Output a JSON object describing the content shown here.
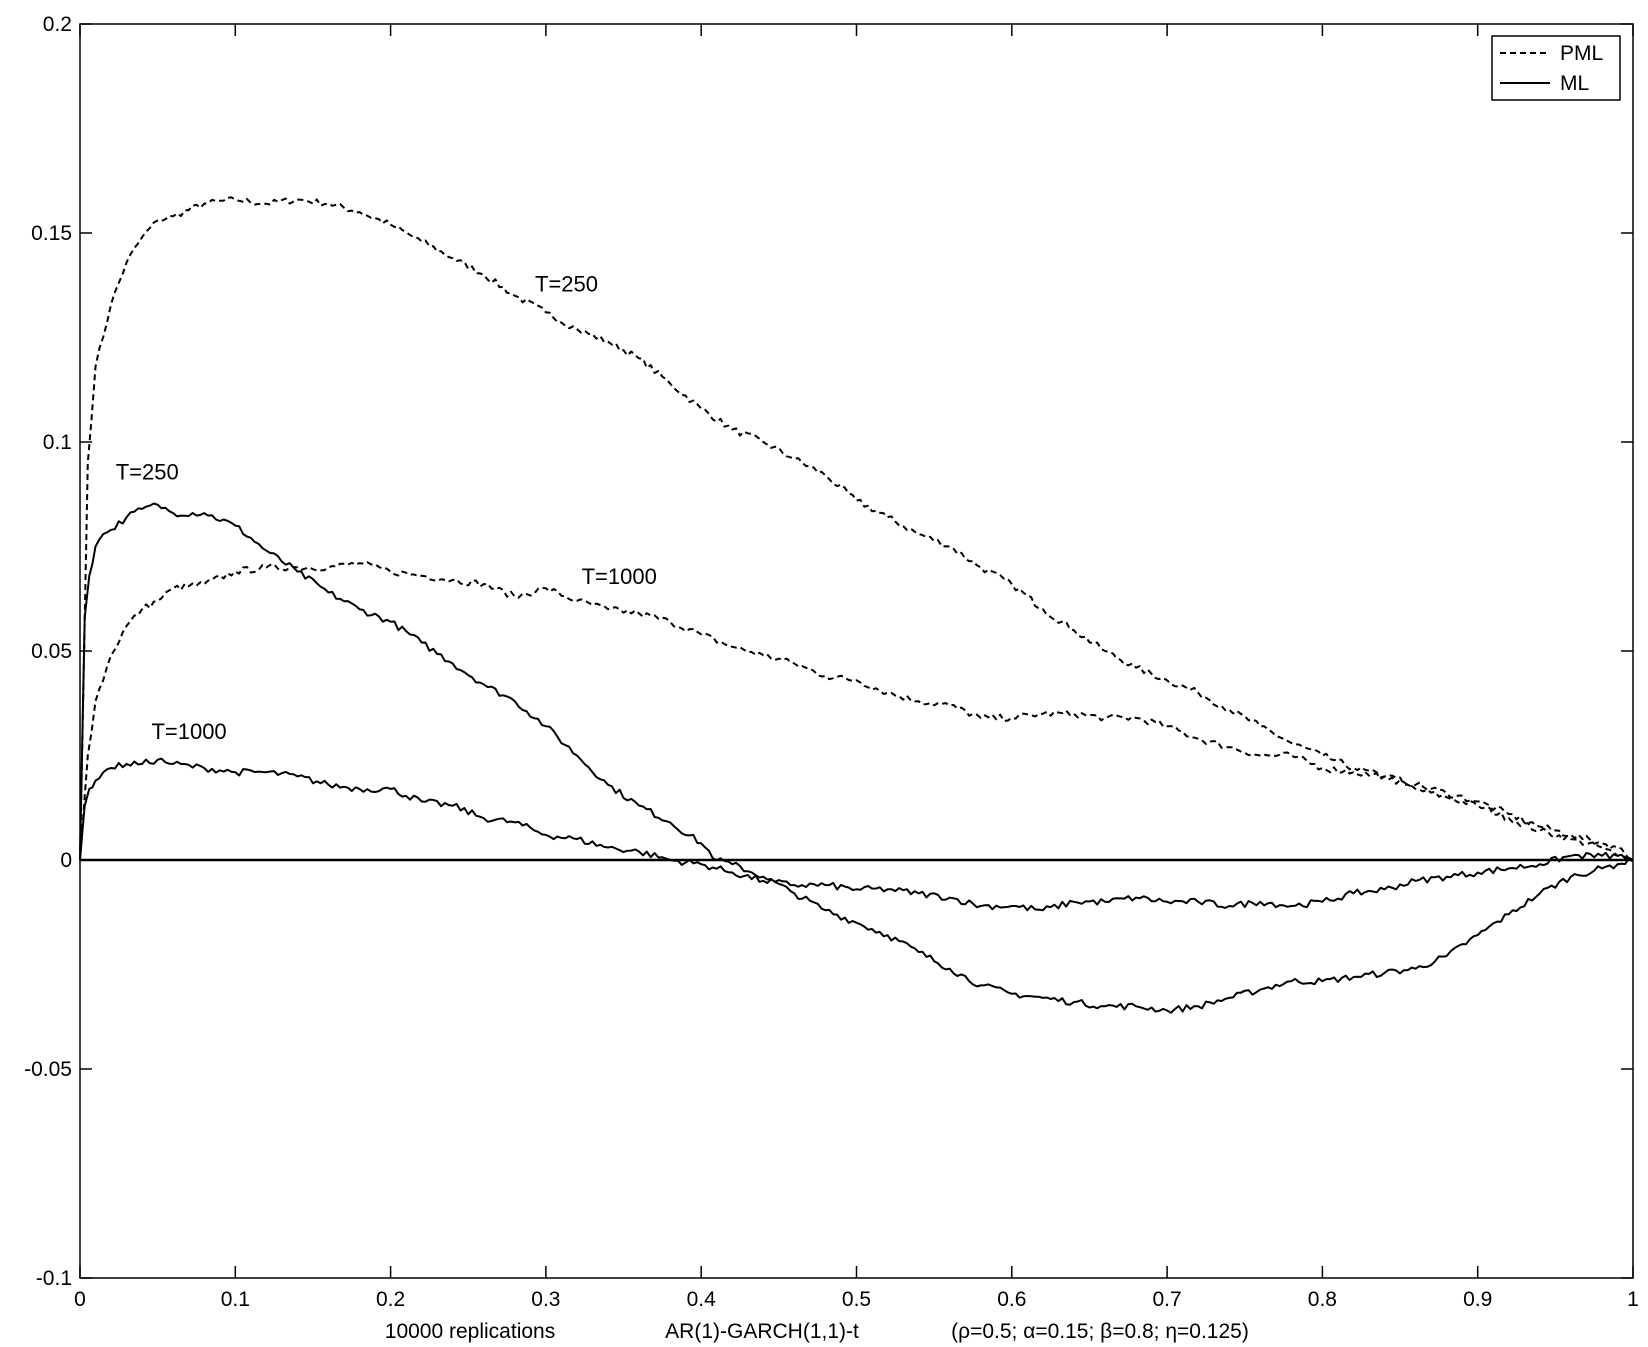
{
  "chart_data": {
    "type": "line",
    "xlim": [
      0,
      1
    ],
    "ylim": [
      -0.1,
      0.2
    ],
    "x_ticks": [
      "0",
      "0.1",
      "0.2",
      "0.3",
      "0.4",
      "0.5",
      "0.6",
      "0.7",
      "0.8",
      "0.9",
      "1"
    ],
    "y_ticks": [
      "-0.1",
      "-0.05",
      "0",
      "0.05",
      "0.1",
      "0.15",
      "0.2"
    ],
    "caption": {
      "replications": "10000 replications",
      "model": "AR(1)-GARCH(1,1)-t",
      "params": "(ρ=0.5; α=0.15; β=0.8; η=0.125)"
    },
    "legend": {
      "position": "top-right",
      "entries": [
        {
          "label": "PML",
          "style": "dashed"
        },
        {
          "label": "ML",
          "style": "solid"
        }
      ]
    },
    "grid": false,
    "reference_line_y": 0,
    "series": [
      {
        "group": "PML",
        "style": "dashed",
        "T": "T=250",
        "x": [
          0,
          0.005,
          0.01,
          0.02,
          0.03,
          0.04,
          0.05,
          0.06,
          0.08,
          0.1,
          0.12,
          0.14,
          0.16,
          0.18,
          0.2,
          0.22,
          0.24,
          0.26,
          0.28,
          0.3,
          0.32,
          0.34,
          0.36,
          0.38,
          0.4,
          0.42,
          0.44,
          0.46,
          0.48,
          0.5,
          0.52,
          0.54,
          0.56,
          0.58,
          0.6,
          0.62,
          0.64,
          0.66,
          0.68,
          0.7,
          0.72,
          0.74,
          0.76,
          0.78,
          0.8,
          0.82,
          0.84,
          0.86,
          0.88,
          0.9,
          0.92,
          0.94,
          0.96,
          0.98,
          0.99,
          1.0
        ],
        "y": [
          0,
          0.095,
          0.118,
          0.133,
          0.143,
          0.149,
          0.153,
          0.154,
          0.157,
          0.158,
          0.157,
          0.158,
          0.157,
          0.155,
          0.152,
          0.148,
          0.144,
          0.14,
          0.135,
          0.131,
          0.127,
          0.124,
          0.12,
          0.114,
          0.108,
          0.103,
          0.1,
          0.096,
          0.092,
          0.086,
          0.082,
          0.078,
          0.075,
          0.07,
          0.066,
          0.06,
          0.055,
          0.05,
          0.046,
          0.043,
          0.04,
          0.036,
          0.032,
          0.028,
          0.025,
          0.022,
          0.02,
          0.017,
          0.015,
          0.013,
          0.01,
          0.007,
          0.005,
          0.003,
          0.001,
          0
        ]
      },
      {
        "group": "PML",
        "style": "dashed",
        "T": "T=1000",
        "x": [
          0,
          0.005,
          0.01,
          0.02,
          0.03,
          0.04,
          0.05,
          0.06,
          0.08,
          0.1,
          0.12,
          0.14,
          0.16,
          0.18,
          0.2,
          0.22,
          0.24,
          0.26,
          0.28,
          0.3,
          0.32,
          0.34,
          0.36,
          0.38,
          0.4,
          0.42,
          0.44,
          0.46,
          0.48,
          0.5,
          0.52,
          0.54,
          0.56,
          0.58,
          0.6,
          0.62,
          0.64,
          0.66,
          0.68,
          0.7,
          0.72,
          0.74,
          0.76,
          0.78,
          0.8,
          0.82,
          0.84,
          0.86,
          0.88,
          0.9,
          0.92,
          0.94,
          0.96,
          0.98,
          0.99,
          1.0
        ],
        "y": [
          0,
          0.025,
          0.038,
          0.049,
          0.056,
          0.06,
          0.062,
          0.065,
          0.066,
          0.069,
          0.07,
          0.07,
          0.07,
          0.071,
          0.069,
          0.068,
          0.067,
          0.066,
          0.063,
          0.065,
          0.062,
          0.06,
          0.059,
          0.057,
          0.054,
          0.051,
          0.049,
          0.047,
          0.044,
          0.043,
          0.04,
          0.038,
          0.037,
          0.034,
          0.034,
          0.035,
          0.035,
          0.034,
          0.034,
          0.032,
          0.029,
          0.027,
          0.025,
          0.025,
          0.022,
          0.021,
          0.02,
          0.018,
          0.016,
          0.014,
          0.011,
          0.008,
          0.006,
          0.004,
          0.003,
          0
        ]
      },
      {
        "group": "ML",
        "style": "solid",
        "T": "T=250",
        "x": [
          0,
          0.003,
          0.006,
          0.01,
          0.015,
          0.02,
          0.03,
          0.04,
          0.05,
          0.06,
          0.08,
          0.1,
          0.12,
          0.14,
          0.16,
          0.18,
          0.2,
          0.22,
          0.24,
          0.26,
          0.28,
          0.3,
          0.32,
          0.34,
          0.36,
          0.38,
          0.4,
          0.41,
          0.42,
          0.44,
          0.46,
          0.48,
          0.5,
          0.52,
          0.54,
          0.56,
          0.58,
          0.6,
          0.62,
          0.64,
          0.66,
          0.68,
          0.7,
          0.72,
          0.74,
          0.76,
          0.78,
          0.8,
          0.82,
          0.84,
          0.86,
          0.88,
          0.9,
          0.92,
          0.94,
          0.96,
          0.98,
          0.99,
          1.0
        ],
        "y": [
          0,
          0.058,
          0.068,
          0.075,
          0.078,
          0.079,
          0.082,
          0.084,
          0.085,
          0.083,
          0.083,
          0.08,
          0.074,
          0.069,
          0.064,
          0.06,
          0.057,
          0.052,
          0.047,
          0.042,
          0.038,
          0.032,
          0.025,
          0.018,
          0.013,
          0.009,
          0.004,
          0.0,
          -0.001,
          -0.004,
          -0.008,
          -0.012,
          -0.015,
          -0.018,
          -0.022,
          -0.026,
          -0.03,
          -0.032,
          -0.033,
          -0.034,
          -0.035,
          -0.035,
          -0.036,
          -0.035,
          -0.033,
          -0.031,
          -0.029,
          -0.029,
          -0.028,
          -0.027,
          -0.026,
          -0.023,
          -0.018,
          -0.013,
          -0.008,
          -0.004,
          -0.002,
          -0.001,
          0
        ]
      },
      {
        "group": "ML",
        "style": "solid",
        "T": "T=1000",
        "x": [
          0,
          0.003,
          0.006,
          0.01,
          0.015,
          0.02,
          0.03,
          0.04,
          0.05,
          0.06,
          0.08,
          0.1,
          0.12,
          0.14,
          0.16,
          0.18,
          0.2,
          0.22,
          0.24,
          0.26,
          0.28,
          0.3,
          0.32,
          0.34,
          0.36,
          0.38,
          0.4,
          0.42,
          0.44,
          0.46,
          0.48,
          0.5,
          0.52,
          0.54,
          0.56,
          0.58,
          0.6,
          0.62,
          0.64,
          0.66,
          0.68,
          0.7,
          0.72,
          0.74,
          0.76,
          0.78,
          0.8,
          0.82,
          0.84,
          0.86,
          0.88,
          0.9,
          0.92,
          0.94,
          0.96,
          0.98,
          0.99,
          1.0
        ],
        "y": [
          0,
          0.013,
          0.017,
          0.019,
          0.021,
          0.022,
          0.023,
          0.023,
          0.024,
          0.023,
          0.022,
          0.021,
          0.021,
          0.02,
          0.018,
          0.017,
          0.017,
          0.014,
          0.013,
          0.01,
          0.009,
          0.006,
          0.005,
          0.003,
          0.002,
          0.0,
          -0.001,
          -0.003,
          -0.005,
          -0.006,
          -0.006,
          -0.007,
          -0.007,
          -0.008,
          -0.009,
          -0.011,
          -0.011,
          -0.012,
          -0.01,
          -0.01,
          -0.009,
          -0.01,
          -0.01,
          -0.011,
          -0.01,
          -0.011,
          -0.01,
          -0.008,
          -0.007,
          -0.005,
          -0.004,
          -0.003,
          -0.002,
          -0.001,
          0.001,
          0.001,
          0.001,
          0
        ]
      }
    ],
    "annotations": [
      {
        "text": "T=250",
        "x": 0.293,
        "y": 0.136
      },
      {
        "text": "T=1000",
        "x": 0.323,
        "y": 0.066
      },
      {
        "text": "T=250",
        "x": 0.023,
        "y": 0.091
      },
      {
        "text": "T=1000",
        "x": 0.046,
        "y": 0.029
      }
    ]
  }
}
